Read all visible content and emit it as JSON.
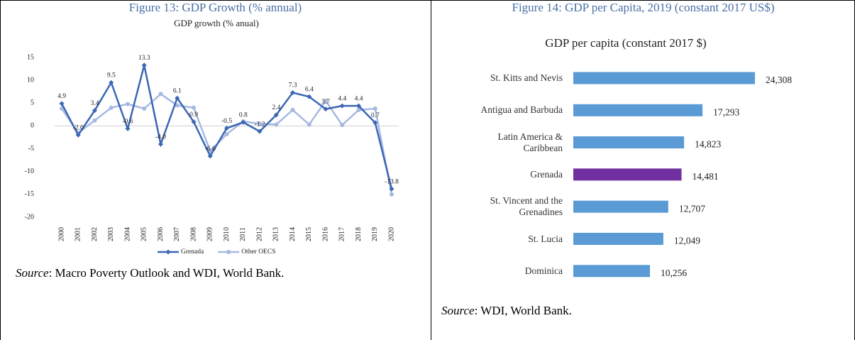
{
  "figures": [
    {
      "caption": "Figure 13: GDP Growth (% annual)",
      "source_label": "Source",
      "source_text": ": Macro Poverty Outlook and WDI, World Bank."
    },
    {
      "caption": "Figure 14: GDP per Capita, 2019 (constant 2017 US$)",
      "source_label": "Source",
      "source_text": ": WDI, World Bank."
    }
  ],
  "chart_data": [
    {
      "type": "line",
      "title": "GDP growth  (% anual)",
      "categories": [
        "2000",
        "2001",
        "2002",
        "2003",
        "2004",
        "2005",
        "2006",
        "2007",
        "2008",
        "2009",
        "2010",
        "2011",
        "2012",
        "2013",
        "2014",
        "2015",
        "2016",
        "2017",
        "2018",
        "2019",
        "2020"
      ],
      "series": [
        {
          "name": "Grenada",
          "color": "#3c67b4",
          "values": [
            4.9,
            -2.0,
            3.4,
            9.5,
            -0.6,
            13.3,
            -4.0,
            6.1,
            0.9,
            -6.6,
            -0.5,
            0.8,
            -1.2,
            2.4,
            7.3,
            6.4,
            3.7,
            4.4,
            4.4,
            0.7,
            -13.8
          ],
          "value_labels": [
            "4.9",
            "-2.0",
            "3.4",
            "9.5",
            "-0.6",
            "13.3",
            "-4.0",
            "6.1",
            "0.9",
            "-6.6",
            "-0.5",
            "0.8",
            "-1.2",
            "2.4",
            "7.3",
            "6.4",
            "3.7",
            "4.4",
            "4.4",
            "0.7",
            "-13.8"
          ]
        },
        {
          "name": "Other OECS",
          "color": "#a6b9e2",
          "values": [
            3.8,
            -1.5,
            1.2,
            4.0,
            4.8,
            3.8,
            7.0,
            4.5,
            4.0,
            -5.5,
            -1.8,
            1.0,
            0.5,
            0.3,
            3.5,
            0.3,
            5.5,
            0.2,
            3.5,
            3.8,
            -15.0
          ]
        }
      ],
      "ylim": [
        -20,
        15
      ],
      "yticks": [
        -20,
        -15,
        -10,
        -5,
        0,
        5,
        10,
        15
      ],
      "grid": false,
      "legend": "bottom"
    },
    {
      "type": "hbar",
      "title": "GDP per capita (constant 2017  $)",
      "categories": [
        "St. Kitts and Nevis",
        "Antigua and Barbuda",
        "Latin America &\nCaribbean",
        "Grenada",
        "St. Vincent and the\nGrenadines",
        "St. Lucia",
        "Dominica"
      ],
      "values": [
        24308,
        17293,
        14823,
        14481,
        12707,
        12049,
        10256
      ],
      "value_labels": [
        "24,308",
        "17,293",
        "14,823",
        "14,481",
        "12,707",
        "12,049",
        "10,256"
      ],
      "colors": [
        "#5b9bd5",
        "#5b9bd5",
        "#5b9bd5",
        "#7030a0",
        "#5b9bd5",
        "#5b9bd5",
        "#5b9bd5"
      ]
    }
  ]
}
